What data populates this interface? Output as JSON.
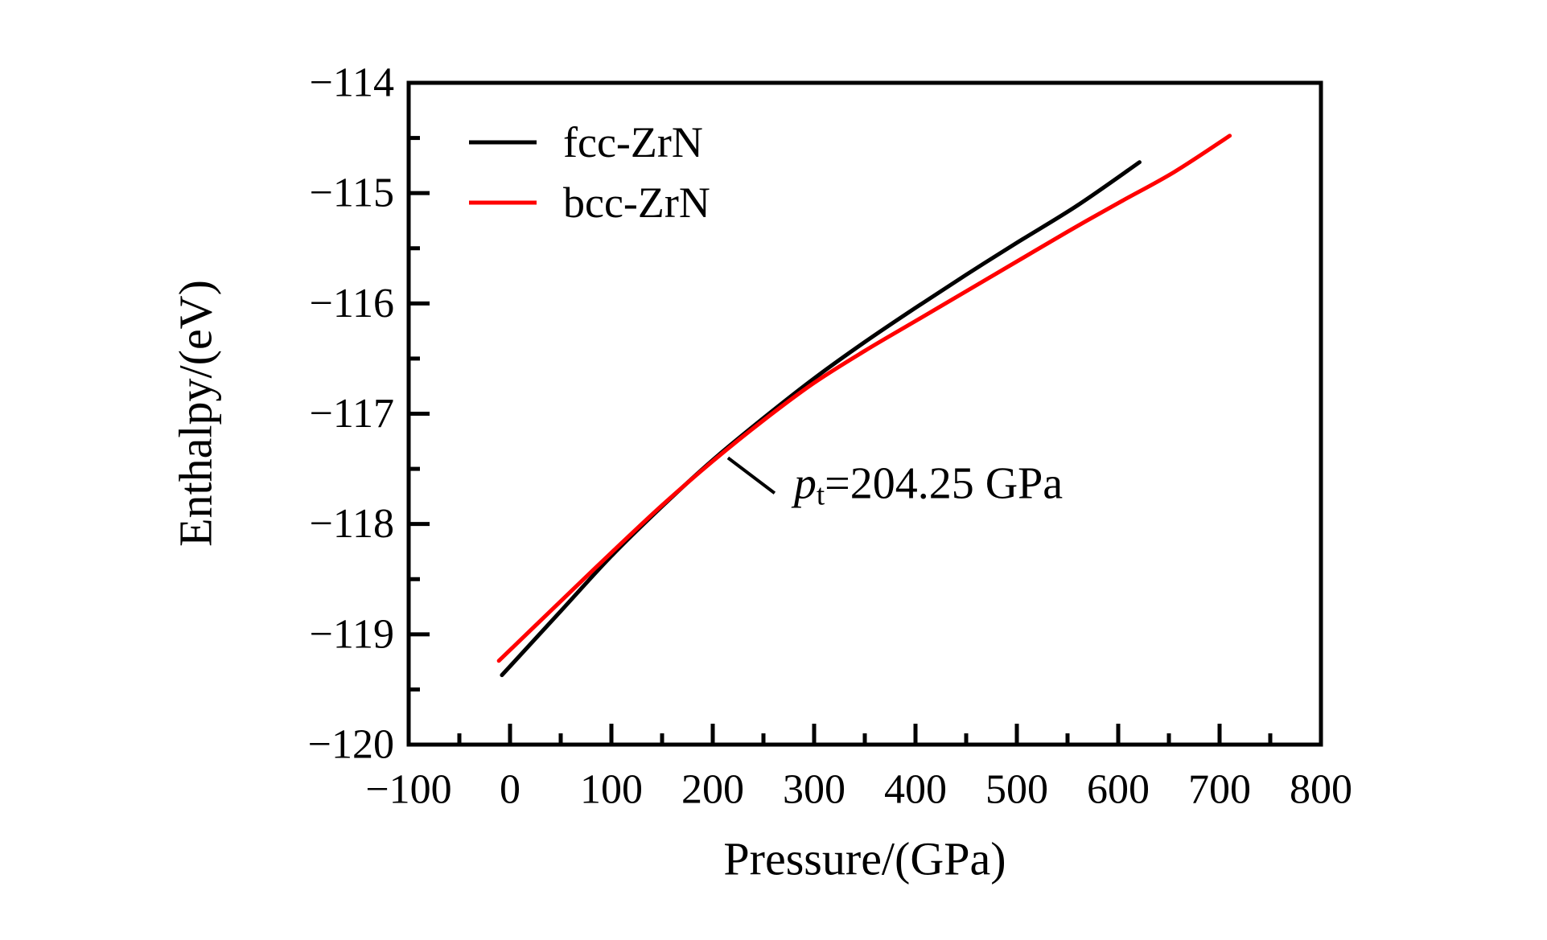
{
  "chart_data": {
    "type": "line",
    "title": "",
    "xlabel": "Pressure/(GPa)",
    "ylabel": "Enthalpy/(eV)",
    "xlim": [
      -100,
      800
    ],
    "ylim": [
      -120,
      -114
    ],
    "x_major_step": 100,
    "x_minor_step": 50,
    "y_major_step": 1,
    "y_minor_step": 0.5,
    "grid": false,
    "legend_position": "upper-left-inside",
    "axis_color": "#000000",
    "series": [
      {
        "name": "fcc-ZrN",
        "color": "#000000",
        "points": [
          [
            -8,
            -119.37
          ],
          [
            50,
            -118.79
          ],
          [
            100,
            -118.29
          ],
          [
            150,
            -117.84
          ],
          [
            200,
            -117.42
          ],
          [
            250,
            -117.04
          ],
          [
            300,
            -116.68
          ],
          [
            350,
            -116.35
          ],
          [
            400,
            -116.04
          ],
          [
            450,
            -115.74
          ],
          [
            500,
            -115.45
          ],
          [
            560,
            -115.11
          ],
          [
            621,
            -114.72
          ]
        ]
      },
      {
        "name": "bcc-ZrN",
        "color": "#ff0000",
        "points": [
          [
            -11,
            -119.24
          ],
          [
            50,
            -118.7
          ],
          [
            100,
            -118.26
          ],
          [
            150,
            -117.83
          ],
          [
            200,
            -117.43
          ],
          [
            250,
            -117.06
          ],
          [
            300,
            -116.72
          ],
          [
            350,
            -116.43
          ],
          [
            400,
            -116.16
          ],
          [
            450,
            -115.89
          ],
          [
            500,
            -115.62
          ],
          [
            550,
            -115.35
          ],
          [
            600,
            -115.09
          ],
          [
            655,
            -114.81
          ],
          [
            710,
            -114.48
          ]
        ]
      }
    ],
    "annotation": {
      "full_text": "pt=204.25 GPa",
      "symbol": "p",
      "subscript": "t",
      "rest": "=204.25 GPa",
      "transition_pressure_gpa": 204.25,
      "leader_start": [
        215,
        -117.4
      ],
      "leader_end": [
        261,
        -117.72
      ]
    }
  }
}
